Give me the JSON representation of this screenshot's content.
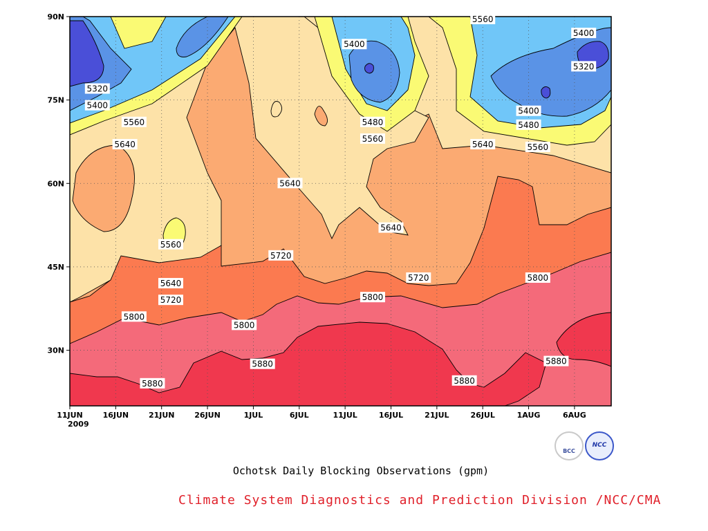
{
  "chart_data": {
    "type": "heatmap",
    "subtype": "filled-contour",
    "title": "Ochotsk Daily Blocking Observations (gpm)",
    "credit": "Climate System Diagnostics and Prediction Division /NCC/CMA",
    "x_tick_labels": [
      "11JUN",
      "16JUN",
      "21JUN",
      "26JUN",
      "1JUL",
      "6JUL",
      "11JUL",
      "16JUL",
      "21JUL",
      "26JUL",
      "1AUG",
      "6AUG"
    ],
    "x_year_label": "2009",
    "x_range": [
      "2009-06-11",
      "2009-08-09"
    ],
    "y_tick_labels": [
      "30N",
      "45N",
      "60N",
      "75N",
      "90N"
    ],
    "y_range": [
      20,
      90
    ],
    "grid": "dotted",
    "contour_levels": [
      5320,
      5400,
      5480,
      5560,
      5640,
      5720,
      5800,
      5880
    ],
    "level_colors": {
      "lt_5320": "#4a4fd8",
      "5320_5400": "#5a93e6",
      "5400_5480": "#70c6f8",
      "5480_5560": "#fafa74",
      "5560_5640": "#fde2a8",
      "5640_5720": "#fbaa72",
      "5720_5800": "#fb7a50",
      "5800_5880": "#f46a7a",
      "gt_5880": "#f0384e"
    },
    "contour_labels": [
      {
        "text": "5320",
        "date": "2009-06-14",
        "lat": 77
      },
      {
        "text": "5400",
        "date": "2009-06-14",
        "lat": 74
      },
      {
        "text": "5560",
        "date": "2009-06-18",
        "lat": 71
      },
      {
        "text": "5640",
        "date": "2009-06-17",
        "lat": 67
      },
      {
        "text": "5560",
        "date": "2009-06-22",
        "lat": 49
      },
      {
        "text": "5640",
        "date": "2009-06-22",
        "lat": 42
      },
      {
        "text": "5720",
        "date": "2009-06-22",
        "lat": 39
      },
      {
        "text": "5800",
        "date": "2009-06-18",
        "lat": 36
      },
      {
        "text": "5880",
        "date": "2009-06-20",
        "lat": 24
      },
      {
        "text": "5800",
        "date": "2009-06-30",
        "lat": 34.5
      },
      {
        "text": "5880",
        "date": "2009-07-02",
        "lat": 27.5
      },
      {
        "text": "5640",
        "date": "2009-07-05",
        "lat": 60
      },
      {
        "text": "5720",
        "date": "2009-07-04",
        "lat": 47
      },
      {
        "text": "5400",
        "date": "2009-07-12",
        "lat": 85
      },
      {
        "text": "5480",
        "date": "2009-07-14",
        "lat": 71
      },
      {
        "text": "5560",
        "date": "2009-07-14",
        "lat": 68
      },
      {
        "text": "5640",
        "date": "2009-07-16",
        "lat": 52
      },
      {
        "text": "5800",
        "date": "2009-07-14",
        "lat": 39.5
      },
      {
        "text": "5720",
        "date": "2009-07-19",
        "lat": 43
      },
      {
        "text": "5880",
        "date": "2009-07-24",
        "lat": 24.5
      },
      {
        "text": "5560",
        "date": "2009-07-26",
        "lat": 89.5
      },
      {
        "text": "5640",
        "date": "2009-07-26",
        "lat": 67
      },
      {
        "text": "5400",
        "date": "2009-07-31",
        "lat": 73
      },
      {
        "text": "5480",
        "date": "2009-07-31",
        "lat": 70.5
      },
      {
        "text": "5560",
        "date": "2009-08-01",
        "lat": 66.5
      },
      {
        "text": "5800",
        "date": "2009-08-01",
        "lat": 43
      },
      {
        "text": "5880",
        "date": "2009-08-03",
        "lat": 28
      },
      {
        "text": "5400",
        "date": "2009-08-06",
        "lat": 87
      },
      {
        "text": "5320",
        "date": "2009-08-06",
        "lat": 81
      }
    ]
  },
  "logos": {
    "bcc": "BCC",
    "ncc": "NCC"
  }
}
